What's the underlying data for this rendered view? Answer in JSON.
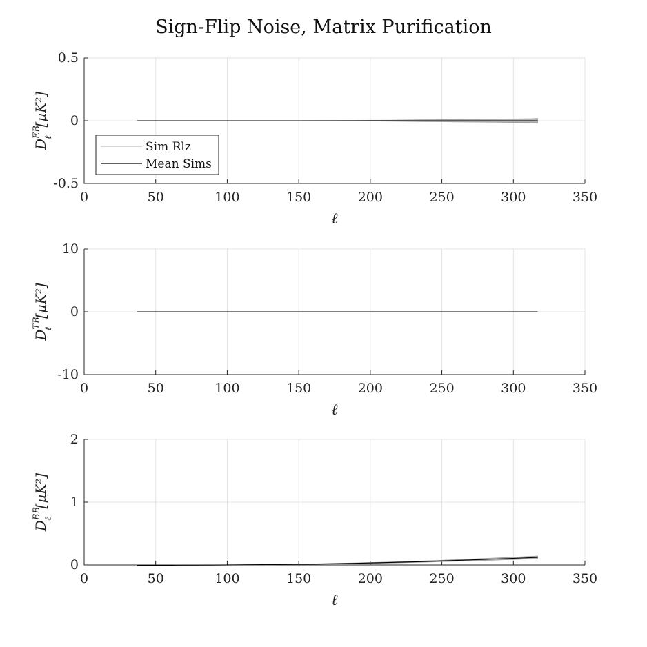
{
  "title": "Sign-Flip Noise, Matrix Purification",
  "legend": {
    "items": [
      {
        "label": "Sim Rlz",
        "color": "#bdbdbd"
      },
      {
        "label": "Mean Sims",
        "color": "#000000"
      }
    ]
  },
  "colors": {
    "realization": "#9a9a9a",
    "mean": "#000000",
    "axis": "#262626",
    "grid": "#e3e3e3"
  },
  "chart_data": [
    {
      "type": "line",
      "ylabel_main": "D",
      "ylabel_sup": "EB",
      "ylabel_sub": "ℓ",
      "ylabel_unit": "[μK²]",
      "xlabel": "ℓ",
      "xlim": [
        0,
        350
      ],
      "ylim": [
        -0.5,
        0.5
      ],
      "xticks": [
        "0",
        "50",
        "100",
        "150",
        "200",
        "250",
        "300",
        "350"
      ],
      "yticks": [
        "-0.5",
        "0",
        "0.5"
      ],
      "grid": true,
      "legend_position": "lower-left",
      "x": [
        37,
        62,
        87,
        112,
        137,
        162,
        187,
        212,
        237,
        262,
        287,
        312,
        317
      ],
      "series": [
        {
          "name": "Mean Sims",
          "values": [
            0,
            0,
            0,
            0,
            0,
            0,
            0,
            0,
            0,
            0,
            0,
            0,
            0
          ]
        }
      ],
      "band": {
        "name": "Sim Rlz",
        "lower": [
          0,
          0,
          0,
          0,
          0,
          -0.001,
          -0.002,
          -0.004,
          -0.007,
          -0.01,
          -0.012,
          -0.016,
          -0.018
        ],
        "upper": [
          0,
          0,
          0,
          0,
          0,
          0.001,
          0.002,
          0.004,
          0.007,
          0.01,
          0.012,
          0.016,
          0.018
        ]
      }
    },
    {
      "type": "line",
      "ylabel_main": "D",
      "ylabel_sup": "TB",
      "ylabel_sub": "ℓ",
      "ylabel_unit": "[μK²]",
      "xlabel": "ℓ",
      "xlim": [
        0,
        350
      ],
      "ylim": [
        -10,
        10
      ],
      "xticks": [
        "0",
        "50",
        "100",
        "150",
        "200",
        "250",
        "300",
        "350"
      ],
      "yticks": [
        "-10",
        "0",
        "10"
      ],
      "grid": true,
      "x": [
        37,
        62,
        87,
        112,
        137,
        162,
        187,
        212,
        237,
        262,
        287,
        312,
        317
      ],
      "series": [
        {
          "name": "Mean Sims",
          "values": [
            0,
            0,
            0,
            0,
            0,
            0,
            0,
            0,
            0,
            0,
            0,
            0,
            0
          ]
        }
      ],
      "band": {
        "name": "Sim Rlz",
        "lower": [
          0,
          0,
          0,
          0,
          0,
          0,
          0,
          0,
          0,
          0,
          0,
          0,
          0
        ],
        "upper": [
          0,
          0,
          0,
          0,
          0,
          0,
          0,
          0,
          0,
          0,
          0,
          0,
          0
        ]
      }
    },
    {
      "type": "line",
      "ylabel_main": "D",
      "ylabel_sup": "BB",
      "ylabel_sub": "ℓ",
      "ylabel_unit": "[μK²]",
      "xlabel": "ℓ",
      "xlim": [
        0,
        350
      ],
      "ylim": [
        0,
        2
      ],
      "xticks": [
        "0",
        "50",
        "100",
        "150",
        "200",
        "250",
        "300",
        "350"
      ],
      "yticks": [
        "0",
        "1",
        "2"
      ],
      "grid": true,
      "x": [
        37,
        62,
        87,
        112,
        137,
        162,
        187,
        212,
        237,
        262,
        287,
        312,
        317
      ],
      "series": [
        {
          "name": "Mean Sims",
          "values": [
            -0.005,
            -0.004,
            -0.002,
            0.002,
            0.007,
            0.014,
            0.024,
            0.037,
            0.053,
            0.072,
            0.093,
            0.115,
            0.12
          ]
        }
      ],
      "band": {
        "name": "Sim Rlz",
        "lower": [
          -0.006,
          -0.005,
          -0.003,
          0.0,
          0.004,
          0.01,
          0.018,
          0.029,
          0.043,
          0.059,
          0.076,
          0.094,
          0.098
        ],
        "upper": [
          -0.004,
          -0.003,
          -0.001,
          0.004,
          0.01,
          0.018,
          0.03,
          0.045,
          0.063,
          0.085,
          0.11,
          0.136,
          0.142
        ]
      }
    }
  ]
}
